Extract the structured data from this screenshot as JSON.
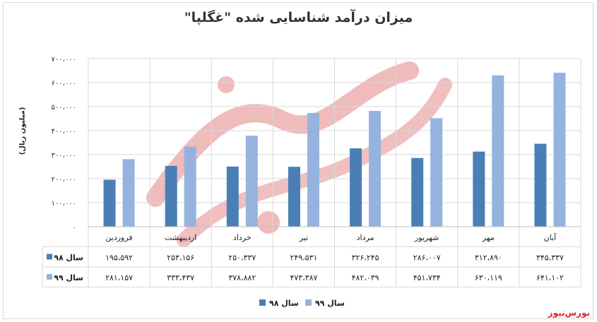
{
  "title": "میزان درآمد شناسایی شده \"غگلپا\"",
  "brand": "بورس‌نیوز",
  "watermark_text": "بورس نیوز",
  "colors": {
    "series98": "#4a7fb6",
    "series99": "#95b3de",
    "grid": "#d9d9d9",
    "axis": "#bfbfbf"
  },
  "chart_data": {
    "type": "bar",
    "ylabel": "(میلیون ریال)",
    "ylim": [
      0,
      700000
    ],
    "yticks": [
      "۰",
      "۱۰۰،۰۰۰",
      "۲۰۰،۰۰۰",
      "۳۰۰،۰۰۰",
      "۴۰۰،۰۰۰",
      "۵۰۰،۰۰۰",
      "۶۰۰،۰۰۰",
      "۷۰۰،۰۰۰"
    ],
    "grid": true,
    "legend_position": "bottom",
    "categories": [
      "فروردین",
      "اردیبهشت",
      "خرداد",
      "تیر",
      "مرداد",
      "شهریور",
      "مهر",
      "آبان"
    ],
    "series": [
      {
        "name": "سال ۹۸",
        "values": [
          195592,
          253156,
          250337,
          249531,
          326245,
          286007,
          312890,
          345337
        ],
        "labels": [
          "۱۹۵،۵۹۲",
          "۲۵۳،۱۵۶",
          "۲۵۰،۳۳۷",
          "۲۴۹،۵۳۱",
          "۳۲۶،۲۴۵",
          "۲۸۶،۰۰۷",
          "۳۱۲،۸۹۰",
          "۳۴۵،۳۳۷"
        ]
      },
      {
        "name": "سال ۹۹",
        "values": [
          281157,
          333437,
          378882,
          473387,
          482039,
          451734,
          630119,
          641102
        ],
        "labels": [
          "۲۸۱،۱۵۷",
          "۳۳۳،۴۳۷",
          "۳۷۸،۸۸۲",
          "۴۷۳،۳۸۷",
          "۴۸۲،۰۳۹",
          "۴۵۱،۷۳۴",
          "۶۳۰،۱۱۹",
          "۶۴۱،۱۰۲"
        ]
      }
    ]
  }
}
